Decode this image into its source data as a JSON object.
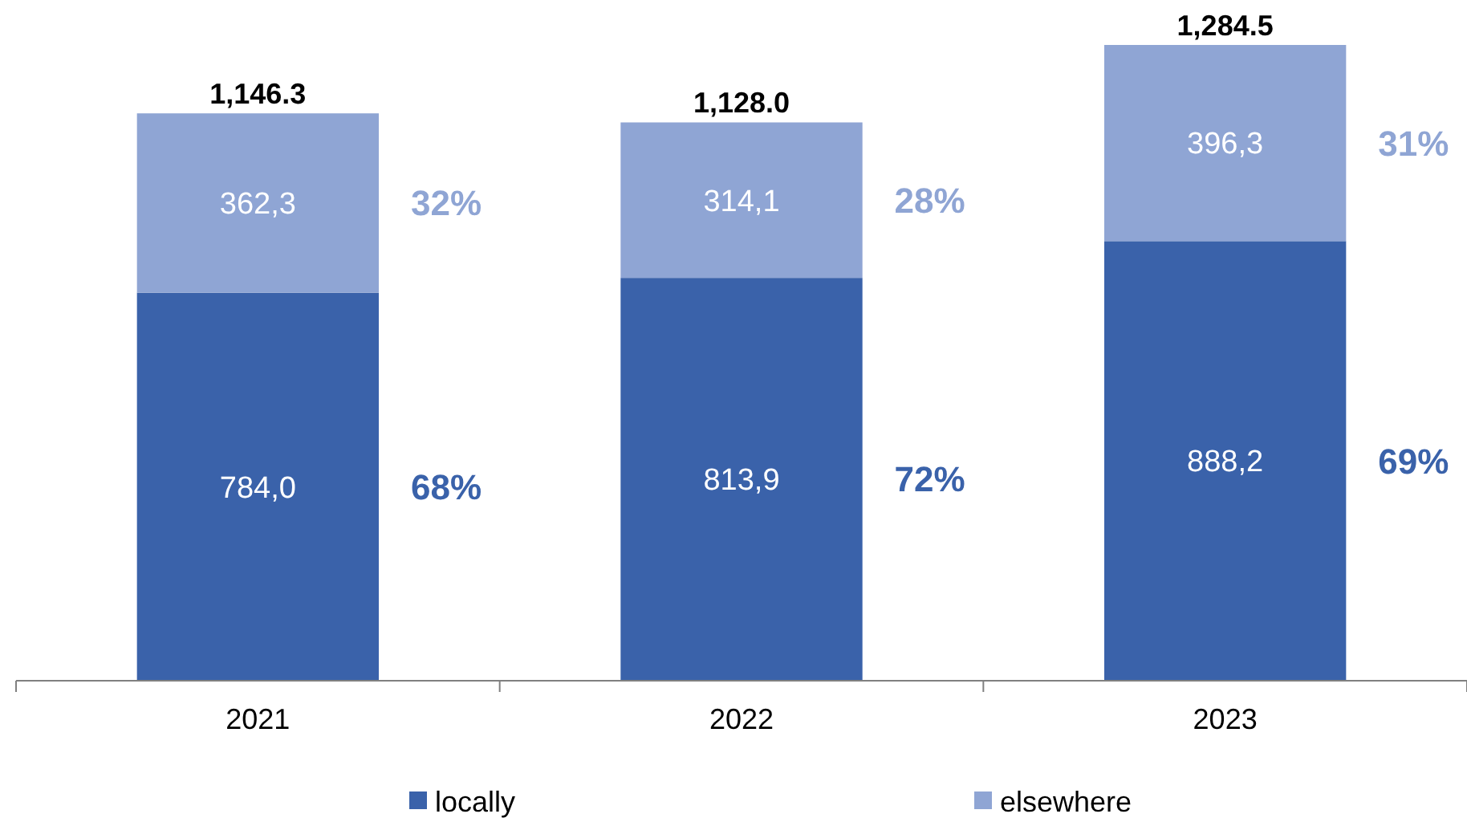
{
  "chart_data": {
    "type": "bar",
    "stacked": true,
    "categories": [
      "2021",
      "2022",
      "2023"
    ],
    "series": [
      {
        "name": "locally",
        "color": "#3a62aa",
        "values": [
          784.0,
          813.9,
          888.2
        ],
        "value_labels": [
          "784,0",
          "813,9",
          "888,2"
        ]
      },
      {
        "name": "elsewhere",
        "color": "#8fa5d4",
        "values": [
          362.3,
          314.1,
          396.3
        ],
        "value_labels": [
          "362,3",
          "314,1",
          "396,3"
        ]
      }
    ],
    "totals": [
      "1,146.3",
      "1,128.0",
      "1,284.5"
    ],
    "annotations": [
      "68%",
      "32%",
      "72%",
      "28%",
      "69%",
      "31%"
    ],
    "tick_labels": "x",
    "legend": "bottom"
  }
}
